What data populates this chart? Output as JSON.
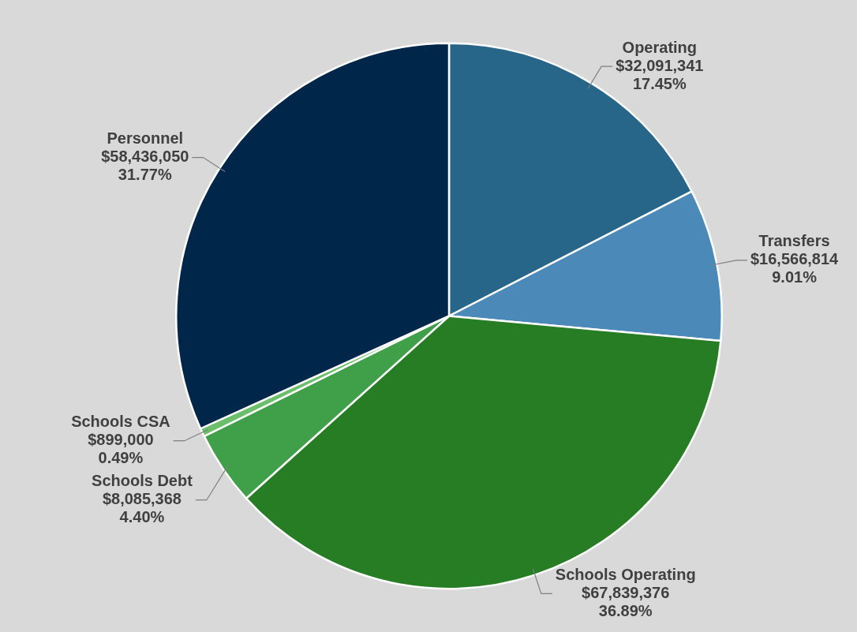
{
  "chart_data": {
    "type": "pie",
    "categories": [
      "Operating",
      "Transfers",
      "Schools Operating",
      "Schools Debt",
      "Schools CSA",
      "Personnel"
    ],
    "values": [
      32091341,
      16566814,
      67839376,
      8085368,
      899000,
      58436050
    ],
    "value_labels": [
      "$32,091,341\n17.45%",
      "$16,566,814\n9.01%",
      "$67,839,376\n36.89%",
      "$8,085,368\n4.40%",
      "$899,000\n0.49%",
      "$58,436,050\n31.77%"
    ],
    "colors": [
      "#276688",
      "#4a89b8",
      "#267d23",
      "#3fa049",
      "#6cbf6a",
      "#00264a"
    ],
    "legend": false
  }
}
